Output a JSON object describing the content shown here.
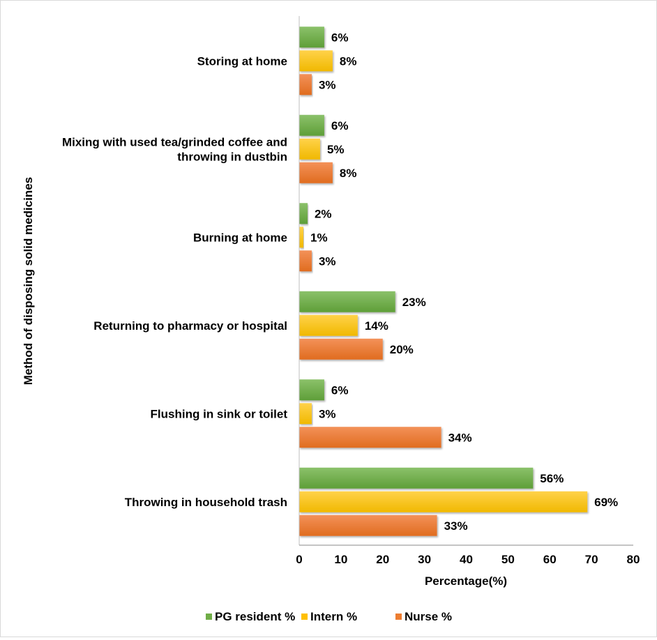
{
  "chart_data": {
    "type": "bar",
    "orientation": "horizontal",
    "title": "",
    "xlabel": "Percentage(%)",
    "ylabel": "Method of disposing solid medicines",
    "xlim": [
      0,
      80
    ],
    "xticks": [
      0,
      10,
      20,
      30,
      40,
      50,
      60,
      70,
      80
    ],
    "grid": false,
    "legend_position": "bottom",
    "categories": [
      [
        "Storing at home"
      ],
      [
        "Mixing with used tea/grinded coffee and",
        "throwing in dustbin"
      ],
      [
        "Burning at home"
      ],
      [
        "Returning to pharmacy or hospital"
      ],
      [
        "Flushing in sink or toilet"
      ],
      [
        "Throwing in household trash"
      ]
    ],
    "series": [
      {
        "name": "PG resident %",
        "color": "#70ad47",
        "values": [
          6,
          6,
          2,
          23,
          6,
          56
        ],
        "labels": [
          "6%",
          "6%",
          "2%",
          "23%",
          "6%",
          "56%"
        ]
      },
      {
        "name": "Intern %",
        "color": "#ffc000",
        "values": [
          8,
          5,
          1,
          14,
          3,
          69
        ],
        "labels": [
          "8%",
          "5%",
          "1%",
          "14%",
          "3%",
          "69%"
        ]
      },
      {
        "name": "Nurse %",
        "color": "#ed7d31",
        "values": [
          3,
          8,
          3,
          20,
          34,
          33
        ],
        "labels": [
          "3%",
          "8%",
          "3%",
          "20%",
          "34%",
          "33%"
        ]
      }
    ]
  }
}
